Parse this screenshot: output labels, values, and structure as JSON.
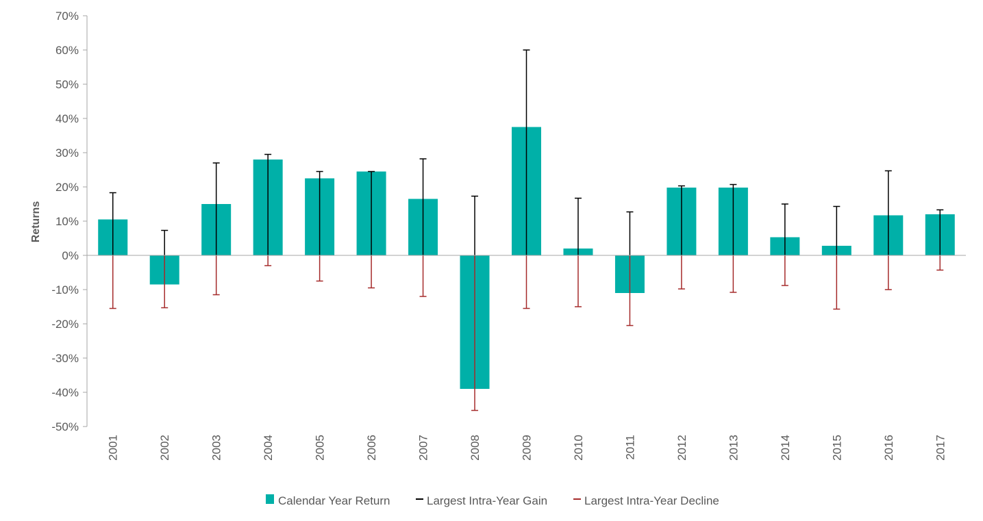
{
  "chart_data": {
    "type": "bar",
    "title": "",
    "xlabel": "",
    "ylabel": "Returns",
    "ylim": [
      -50,
      70
    ],
    "ytick_step": 10,
    "ytick_suffix": "%",
    "categories": [
      "2001",
      "2002",
      "2003",
      "2004",
      "2005",
      "2006",
      "2007",
      "2008",
      "2009",
      "2010",
      "2011",
      "2012",
      "2013",
      "2014",
      "2015",
      "2016",
      "2017"
    ],
    "series": [
      {
        "name": "Calendar Year Return",
        "kind": "bar",
        "color": "#00b0a8",
        "values": [
          10.5,
          -8.5,
          15.0,
          28.0,
          22.5,
          24.5,
          16.5,
          -39.0,
          37.5,
          2.0,
          -11.0,
          19.8,
          19.8,
          5.3,
          2.8,
          11.7,
          12.0
        ]
      },
      {
        "name": "Largest Intra-Year Gain",
        "kind": "error-up",
        "color": "#000000",
        "values": [
          18.3,
          7.3,
          27.0,
          29.5,
          24.5,
          24.5,
          28.2,
          17.3,
          60.0,
          16.7,
          12.7,
          20.3,
          20.7,
          15.0,
          14.3,
          24.7,
          13.3
        ]
      },
      {
        "name": "Largest Intra-Year Decline",
        "kind": "error-down",
        "color": "#a52a2a",
        "values": [
          -15.5,
          -15.3,
          -11.5,
          -3.0,
          -7.5,
          -9.5,
          -12.0,
          -45.3,
          -15.5,
          -15.0,
          -20.5,
          -9.8,
          -10.8,
          -8.8,
          -15.7,
          -10.0,
          -4.3
        ]
      }
    ],
    "legend": {
      "placement": "bottom"
    },
    "grid": false
  }
}
